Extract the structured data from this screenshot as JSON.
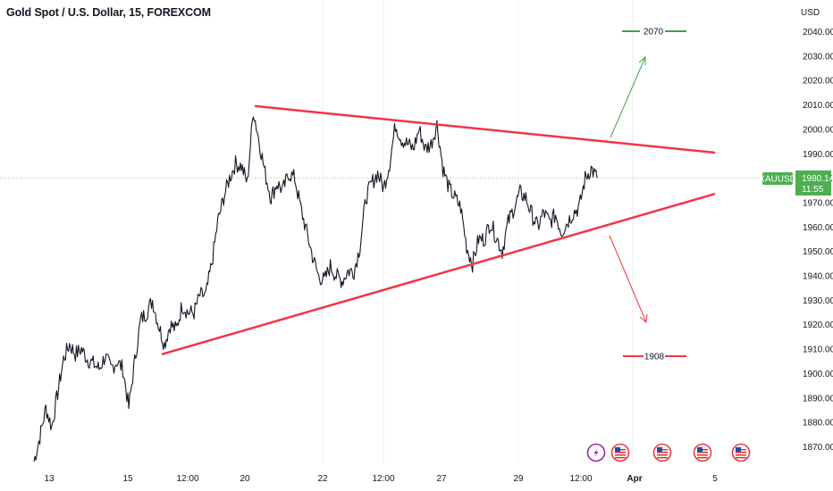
{
  "header": {
    "title": "Gold Spot / U.S. Dollar, 15, FOREXCOM"
  },
  "price_axis": {
    "unit": "USD",
    "ticks": [
      "2040.00",
      "2030.00",
      "2020.00",
      "2010.00",
      "2000.00",
      "1990.00",
      "1980.00",
      "1970.00",
      "1960.00",
      "1950.00",
      "1940.00",
      "1930.00",
      "1920.00",
      "1910.00",
      "1900.00",
      "1890.00",
      "1880.00",
      "1870.00"
    ]
  },
  "time_axis": {
    "labels": [
      {
        "text": "13",
        "bold": false
      },
      {
        "text": "15",
        "bold": false
      },
      {
        "text": "12:00",
        "bold": false
      },
      {
        "text": "20",
        "bold": false
      },
      {
        "text": "22",
        "bold": false
      },
      {
        "text": "12:00",
        "bold": false
      },
      {
        "text": "27",
        "bold": false
      },
      {
        "text": "29",
        "bold": false
      },
      {
        "text": "12:00",
        "bold": false
      },
      {
        "text": "Apr",
        "bold": true
      },
      {
        "text": "5",
        "bold": false
      }
    ]
  },
  "last_price": {
    "symbol": "XAUUSD",
    "price": "1980.14",
    "countdown": "11:55",
    "value": 1980.14
  },
  "targets": {
    "upper": "2070",
    "lower": "1908"
  },
  "events": [
    {
      "icon": "lightning-icon"
    },
    {
      "icon": "us-flag-icon"
    },
    {
      "icon": "us-flag-icon"
    },
    {
      "icon": "us-flag-icon"
    },
    {
      "icon": "us-flag-icon"
    }
  ],
  "colors": {
    "trendline": "#f23645",
    "target_up": "#43a047",
    "target_down": "#f23645",
    "last_price_bg": "#4caf50",
    "price_line": "#131722"
  },
  "chart_data": {
    "type": "line",
    "title": "Gold Spot / U.S. Dollar, 15, FOREXCOM",
    "ylabel": "USD",
    "ylim": [
      1865,
      2045
    ],
    "x_labels": [
      "13",
      "15",
      "12:00",
      "20",
      "22",
      "12:00",
      "27",
      "29",
      "12:00",
      "Apr",
      "5"
    ],
    "price_path": [
      [
        0,
        1864
      ],
      [
        1,
        1874
      ],
      [
        2,
        1886
      ],
      [
        3,
        1878
      ],
      [
        4,
        1892
      ],
      [
        5,
        1906
      ],
      [
        6,
        1912
      ],
      [
        7,
        1908
      ],
      [
        8,
        1910
      ],
      [
        9,
        1906
      ],
      [
        10,
        1904
      ],
      [
        11,
        1902
      ],
      [
        12,
        1907
      ],
      [
        13,
        1902
      ],
      [
        14,
        1905
      ],
      [
        15,
        1902
      ],
      [
        16,
        1886
      ],
      [
        17,
        1905
      ],
      [
        18,
        1922
      ],
      [
        19,
        1925
      ],
      [
        20,
        1930
      ],
      [
        21,
        1920
      ],
      [
        22,
        1912
      ],
      [
        23,
        1920
      ],
      [
        24,
        1918
      ],
      [
        25,
        1928
      ],
      [
        26,
        1925
      ],
      [
        27,
        1925
      ],
      [
        28,
        1932
      ],
      [
        29,
        1932
      ],
      [
        30,
        1945
      ],
      [
        31,
        1962
      ],
      [
        32,
        1972
      ],
      [
        33,
        1980
      ],
      [
        34,
        1986
      ],
      [
        35,
        1985
      ],
      [
        36,
        1978
      ],
      [
        37,
        2008
      ],
      [
        38,
        1995
      ],
      [
        39,
        1982
      ],
      [
        40,
        1972
      ],
      [
        41,
        1978
      ],
      [
        42,
        1975
      ],
      [
        43,
        1982
      ],
      [
        44,
        1980
      ],
      [
        45,
        1968
      ],
      [
        46,
        1958
      ],
      [
        47,
        1948
      ],
      [
        48,
        1940
      ],
      [
        49,
        1938
      ],
      [
        50,
        1944
      ],
      [
        51,
        1940
      ],
      [
        52,
        1938
      ],
      [
        53,
        1942
      ],
      [
        54,
        1942
      ],
      [
        55,
        1952
      ],
      [
        56,
        1972
      ],
      [
        57,
        1978
      ],
      [
        58,
        1982
      ],
      [
        59,
        1976
      ],
      [
        60,
        1986
      ],
      [
        61,
        2002
      ],
      [
        62,
        1996
      ],
      [
        63,
        1994
      ],
      [
        64,
        1992
      ],
      [
        65,
        2000
      ],
      [
        66,
        1992
      ],
      [
        67,
        1994
      ],
      [
        68,
        2002
      ],
      [
        69,
        1984
      ],
      [
        70,
        1976
      ],
      [
        71,
        1972
      ],
      [
        72,
        1968
      ],
      [
        73,
        1952
      ],
      [
        74,
        1945
      ],
      [
        75,
        1955
      ],
      [
        76,
        1955
      ],
      [
        77,
        1962
      ],
      [
        78,
        1956
      ],
      [
        79,
        1950
      ],
      [
        80,
        1962
      ],
      [
        81,
        1968
      ],
      [
        82,
        1974
      ],
      [
        83,
        1972
      ],
      [
        84,
        1965
      ],
      [
        85,
        1960
      ],
      [
        86,
        1966
      ],
      [
        87,
        1962
      ],
      [
        88,
        1965
      ],
      [
        89,
        1958
      ],
      [
        90,
        1962
      ],
      [
        91,
        1966
      ],
      [
        92,
        1968
      ],
      [
        93,
        1980
      ],
      [
        94,
        1984
      ],
      [
        95,
        1980
      ]
    ],
    "trendlines": [
      {
        "role": "upper",
        "from": [
          1,
          2009.5
        ],
        "to": [
          2,
          1990.5
        ]
      },
      {
        "role": "lower",
        "from": [
          0,
          1908
        ],
        "to": [
          2,
          1973.5
        ]
      }
    ],
    "projections": [
      {
        "role": "up",
        "target": 2070
      },
      {
        "role": "down",
        "target": 1908
      }
    ],
    "last_value": 1980.14
  }
}
